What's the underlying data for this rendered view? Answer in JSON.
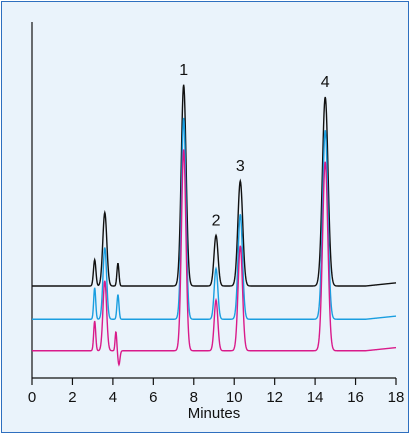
{
  "chart_data": {
    "type": "line",
    "xlabel": "Minutes",
    "ylabel": "",
    "xlim": [
      0,
      18
    ],
    "x_ticks": [
      0,
      2,
      4,
      6,
      8,
      10,
      12,
      14,
      16,
      18
    ],
    "y_axis_ticks_shown": false,
    "grid": false,
    "legend": "none",
    "peak_labels": [
      {
        "label": "1",
        "x": 7.5
      },
      {
        "label": "2",
        "x": 9.1
      },
      {
        "label": "3",
        "x": 10.3
      },
      {
        "label": "4",
        "x": 14.5
      }
    ],
    "series": [
      {
        "color": "#111111",
        "baseline": 0.0,
        "peaks": [
          {
            "x": 3.1,
            "height": 0.15,
            "width": 0.06
          },
          {
            "x": 3.6,
            "height": 0.42,
            "width": 0.1
          },
          {
            "x": 4.25,
            "height": 0.13,
            "width": 0.05
          },
          {
            "x": 7.5,
            "height": 1.15,
            "width": 0.12
          },
          {
            "x": 9.1,
            "height": 0.29,
            "width": 0.1
          },
          {
            "x": 10.3,
            "height": 0.6,
            "width": 0.12
          },
          {
            "x": 14.5,
            "height": 1.08,
            "width": 0.14
          }
        ]
      },
      {
        "color": "#1a9ee0",
        "baseline": -0.19,
        "peaks": [
          {
            "x": 3.1,
            "height": 0.18,
            "width": 0.05
          },
          {
            "x": 3.6,
            "height": 0.41,
            "width": 0.09
          },
          {
            "x": 4.25,
            "height": 0.14,
            "width": 0.05
          },
          {
            "x": 7.5,
            "height": 1.15,
            "width": 0.11
          },
          {
            "x": 9.1,
            "height": 0.29,
            "width": 0.09
          },
          {
            "x": 10.3,
            "height": 0.6,
            "width": 0.11
          },
          {
            "x": 14.5,
            "height": 1.08,
            "width": 0.13
          }
        ]
      },
      {
        "color": "#d91a8a",
        "baseline": -0.37,
        "peaks": [
          {
            "x": 3.1,
            "height": 0.17,
            "width": 0.05
          },
          {
            "x": 3.6,
            "height": 0.4,
            "width": 0.09
          },
          {
            "x": 4.15,
            "height": 0.11,
            "width": 0.04
          },
          {
            "x": 4.3,
            "height": -0.08,
            "width": 0.05
          },
          {
            "x": 7.5,
            "height": 1.15,
            "width": 0.11
          },
          {
            "x": 9.1,
            "height": 0.29,
            "width": 0.09
          },
          {
            "x": 10.3,
            "height": 0.6,
            "width": 0.11
          },
          {
            "x": 14.5,
            "height": 1.08,
            "width": 0.13
          }
        ]
      }
    ]
  }
}
